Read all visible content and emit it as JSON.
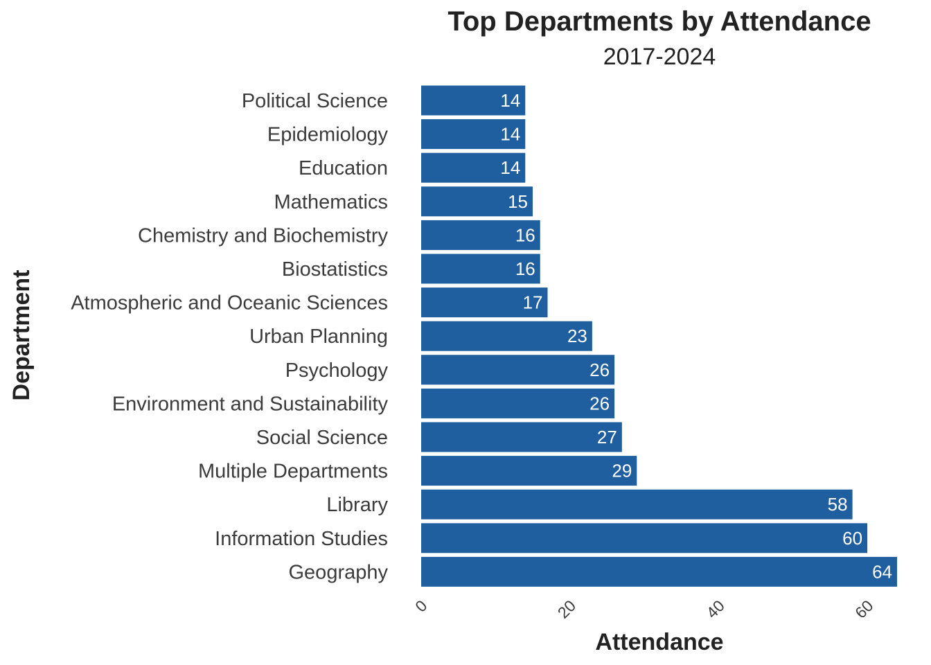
{
  "chart_data": {
    "type": "bar",
    "orientation": "horizontal",
    "title": "Top Departments by Attendance",
    "subtitle": "2017-2024",
    "xlabel": "Attendance",
    "ylabel": "Department",
    "xlim": [
      0,
      64
    ],
    "xticks": [
      0,
      20,
      40,
      60
    ],
    "grid": false,
    "legend": "none",
    "bar_color": "#1f5f9f",
    "categories": [
      "Political Science",
      "Epidemiology",
      "Education",
      "Mathematics",
      "Chemistry and Biochemistry",
      "Biostatistics",
      "Atmospheric and Oceanic Sciences",
      "Urban Planning",
      "Psychology",
      "Environment and Sustainability",
      "Social Science",
      "Multiple Departments",
      "Library",
      "Information Studies",
      "Geography"
    ],
    "values": [
      14,
      14,
      14,
      15,
      16,
      16,
      17,
      23,
      26,
      26,
      27,
      29,
      58,
      60,
      64
    ]
  }
}
